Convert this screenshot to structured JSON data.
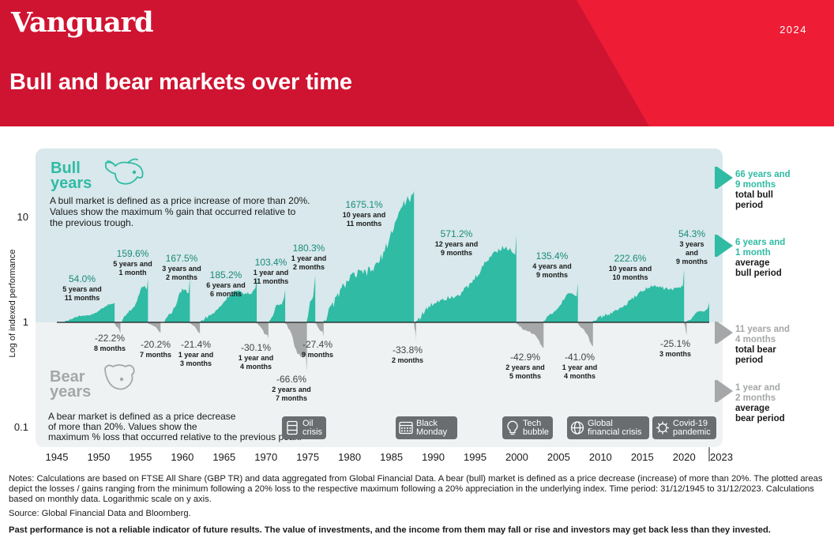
{
  "header": {
    "logo": "Vanguard",
    "year": "2024",
    "title": "Bull and bear markets over time",
    "colors": {
      "red": "#cf1432",
      "red_light": "#ef1c35",
      "teal": "#2fbba4",
      "teal_text": "#1a8a79",
      "bull_bg": "#d8e8ec",
      "bear_bg": "#eff2f2",
      "gray": "#a5a7a8"
    }
  },
  "panels": {
    "bull_title": "Bull years",
    "bull_desc": "A bull market is defined as a price increase of more than 20%. Values show the maximum % gain that occurred relative to the previous trough.",
    "bear_title": "Bear years",
    "bear_desc": "A bear market is defined as a price decrease of more than 20%. Values show the maximum % loss that occurred relative to the previous peak."
  },
  "chart_data": {
    "type": "area",
    "ylabel": "Log of indexed performance",
    "yscale": "log",
    "ylim": [
      0.1,
      13
    ],
    "yticks": [
      10,
      1,
      0.1
    ],
    "xlim": [
      1945,
      2023
    ],
    "xticks": [
      1945,
      1950,
      1955,
      1960,
      1965,
      1970,
      1975,
      1980,
      1985,
      1990,
      1995,
      2000,
      2005,
      2010,
      2015,
      2020,
      2023
    ],
    "bull_markets": [
      {
        "start": 1945.99,
        "end": 1951.9,
        "gain": 0.54,
        "value": "54.0%",
        "duration": "5 years and 11 months"
      },
      {
        "start": 1952.8,
        "end": 1955.9,
        "gain": 1.596,
        "value": "159.6%",
        "duration": "5 years and 1 month"
      },
      {
        "start": 1957.9,
        "end": 1960.9,
        "gain": 1.675,
        "value": "167.5%",
        "duration": "3 years and 2 months"
      },
      {
        "start": 1962.2,
        "end": 1968.9,
        "gain": 1.852,
        "value": "185.2%",
        "duration": "6 years and 6 months"
      },
      {
        "start": 1970.4,
        "end": 1972.3,
        "gain": 1.034,
        "value": "103.4%",
        "duration": "1 year and 11 months"
      },
      {
        "start": 1974.9,
        "end": 1975.9,
        "gain": 1.803,
        "value": "180.3%",
        "duration": "1 year and 2 months"
      },
      {
        "start": 1976.9,
        "end": 1987.7,
        "gain": 16.751,
        "value": "1675.1%",
        "duration": "10 years and 11 months"
      },
      {
        "start": 1987.95,
        "end": 1999.95,
        "gain": 5.712,
        "value": "571.2%",
        "duration": "12 years and 9 months"
      },
      {
        "start": 2003.2,
        "end": 2007.3,
        "gain": 1.354,
        "value": "135.4%",
        "duration": "4 years and 9 months"
      },
      {
        "start": 2009.1,
        "end": 2020.0,
        "gain": 2.226,
        "value": "222.6%",
        "duration": "10 years and 10 months"
      },
      {
        "start": 2020.3,
        "end": 2023.0,
        "gain": 0.543,
        "value": "54.3%",
        "duration": "3 years and 9 months"
      }
    ],
    "bear_markets": [
      {
        "start": 1951.9,
        "end": 1952.6,
        "loss": -0.222,
        "value": "-22.2%",
        "duration": "8 months"
      },
      {
        "start": 1955.9,
        "end": 1957.4,
        "loss": -0.202,
        "value": "-20.2%",
        "duration": "7 months"
      },
      {
        "start": 1960.9,
        "end": 1962.1,
        "loss": -0.214,
        "value": "-21.4%",
        "duration": "1 year and 3 months"
      },
      {
        "start": 1968.9,
        "end": 1970.3,
        "loss": -0.301,
        "value": "-30.1%",
        "duration": "1 year and 4 months"
      },
      {
        "start": 1972.3,
        "end": 1974.9,
        "loss": -0.666,
        "value": "-66.6%",
        "duration": "2 years and 7 months"
      },
      {
        "start": 1975.9,
        "end": 1976.9,
        "loss": -0.274,
        "value": "-27.4%",
        "duration": "9 months"
      },
      {
        "start": 1987.7,
        "end": 1987.95,
        "loss": -0.338,
        "value": "-33.8%",
        "duration": "2 months"
      },
      {
        "start": 1999.95,
        "end": 2003.2,
        "loss": -0.429,
        "value": "-42.9%",
        "duration": "2 years and 5 months"
      },
      {
        "start": 2007.3,
        "end": 2009.1,
        "loss": -0.41,
        "value": "-41.0%",
        "duration": "1 year and 4 months"
      },
      {
        "start": 2020.0,
        "end": 2020.3,
        "loss": -0.251,
        "value": "-25.1%",
        "duration": "3 months"
      }
    ],
    "events": [
      {
        "label": "Oil crisis",
        "year": 1973.5,
        "icon": "oil-barrel-icon"
      },
      {
        "label": "Black Monday",
        "year": 1987,
        "icon": "calendar-icon"
      },
      {
        "label": "Tech bubble",
        "year": 2000,
        "icon": "lightbulb-icon"
      },
      {
        "label": "Global financial crisis",
        "year": 2008,
        "icon": "globe-icon"
      },
      {
        "label": "Covid-19 pandemic",
        "year": 2020,
        "icon": "virus-icon"
      }
    ],
    "summary": [
      {
        "value": "66 years and 9 months",
        "label": "total bull period",
        "color": "#2fbba4"
      },
      {
        "value": "6 years and 1 month",
        "label": "average bull period",
        "color": "#2fbba4"
      },
      {
        "value": "11 years and 4 months",
        "label": "total bear period",
        "color": "#a5a7a8"
      },
      {
        "value": "1 year and 2 months",
        "label": "average bear period",
        "color": "#a5a7a8"
      }
    ]
  },
  "footer": {
    "notes": "Notes: Calculations are based on FTSE All Share (GBP TR) and data aggregated from Global Financial Data. A bear (bull) market is defined as a price decrease (increase) of more than 20%. The plotted areas depict the losses / gains ranging from the minimum following a 20% loss to the respective maximum following a 20% appreciation in the underlying index. Time period: 31/12/1945 to 31/12/2023. Calculations based on monthly data. Logarithmic scale on y axis.",
    "source": "Source: Global Financial Data and Bloomberg.",
    "disclaimer": "Past performance is not a reliable indicator of future results. The value of investments, and the income from them may fall or rise and investors may get back less than they invested."
  }
}
